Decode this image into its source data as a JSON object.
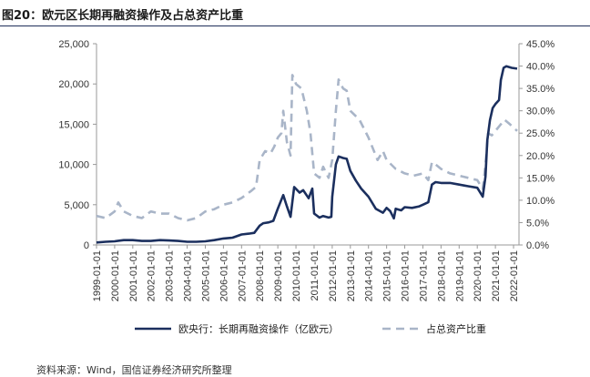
{
  "figure": {
    "title": "图20：欧元区长期再融资操作及占总资产比重",
    "source": "资料来源：Wind，国信证券经济研究所整理"
  },
  "chart_data": {
    "type": "line",
    "title": "",
    "xlabel": "",
    "x_ticks": [
      "1999-01-01",
      "2000-01-01",
      "2001-01-01",
      "2002-01-01",
      "2003-01-01",
      "2004-01-01",
      "2005-01-01",
      "2006-01-01",
      "2007-01-01",
      "2008-01-01",
      "2009-01-01",
      "2010-01-01",
      "2011-01-01",
      "2012-01-01",
      "2013-01-01",
      "2014-01-01",
      "2015-01-01",
      "2016-01-01",
      "2017-01-01",
      "2018-01-01",
      "2019-01-01",
      "2020-01-01",
      "2021-01-01",
      "2022-01-01"
    ],
    "y_left": {
      "label": "",
      "range": [
        0,
        25000
      ],
      "ticks": [
        "0",
        "5,000",
        "10,000",
        "15,000",
        "20,000",
        "25,000"
      ]
    },
    "y_right": {
      "label": "",
      "range": [
        0,
        45
      ],
      "ticks": [
        "0.0%",
        "5.0%",
        "10.0%",
        "15.0%",
        "20.0%",
        "25.0%",
        "30.0%",
        "35.0%",
        "40.0%",
        "45.0%"
      ]
    },
    "legend_position": "bottom",
    "series": [
      {
        "name": "欧央行：长期再融资操作（亿欧元）",
        "axis": "left",
        "color": "#1b2f5e",
        "style": "solid",
        "points": [
          [
            1999.0,
            300
          ],
          [
            1999.5,
            400
          ],
          [
            2000.0,
            450
          ],
          [
            2000.5,
            600
          ],
          [
            2001.0,
            600
          ],
          [
            2001.5,
            500
          ],
          [
            2002.0,
            500
          ],
          [
            2002.5,
            600
          ],
          [
            2003.0,
            550
          ],
          [
            2003.5,
            500
          ],
          [
            2004.0,
            400
          ],
          [
            2004.5,
            400
          ],
          [
            2005.0,
            450
          ],
          [
            2005.5,
            600
          ],
          [
            2006.0,
            800
          ],
          [
            2006.5,
            900
          ],
          [
            2007.0,
            1300
          ],
          [
            2007.4,
            1400
          ],
          [
            2007.7,
            1500
          ],
          [
            2008.0,
            2400
          ],
          [
            2008.2,
            2700
          ],
          [
            2008.5,
            2800
          ],
          [
            2008.75,
            3000
          ],
          [
            2009.0,
            4500
          ],
          [
            2009.3,
            6200
          ],
          [
            2009.5,
            4800
          ],
          [
            2009.7,
            3500
          ],
          [
            2009.9,
            7200
          ],
          [
            2010.2,
            6500
          ],
          [
            2010.4,
            6800
          ],
          [
            2010.7,
            5800
          ],
          [
            2010.9,
            7000
          ],
          [
            2011.0,
            3900
          ],
          [
            2011.3,
            3400
          ],
          [
            2011.5,
            3600
          ],
          [
            2011.8,
            3400
          ],
          [
            2011.95,
            3500
          ],
          [
            2012.0,
            6000
          ],
          [
            2012.2,
            10000
          ],
          [
            2012.35,
            11000
          ],
          [
            2012.6,
            10800
          ],
          [
            2012.8,
            10700
          ],
          [
            2013.0,
            9200
          ],
          [
            2013.3,
            8000
          ],
          [
            2013.6,
            7000
          ],
          [
            2014.0,
            6000
          ],
          [
            2014.4,
            4500
          ],
          [
            2014.8,
            4000
          ],
          [
            2015.0,
            4600
          ],
          [
            2015.2,
            4200
          ],
          [
            2015.4,
            3300
          ],
          [
            2015.5,
            4500
          ],
          [
            2015.8,
            4300
          ],
          [
            2016.0,
            4700
          ],
          [
            2016.4,
            4600
          ],
          [
            2016.8,
            4800
          ],
          [
            2017.0,
            5000
          ],
          [
            2017.3,
            5300
          ],
          [
            2017.5,
            7500
          ],
          [
            2017.7,
            7800
          ],
          [
            2018.0,
            7700
          ],
          [
            2018.5,
            7700
          ],
          [
            2019.0,
            7500
          ],
          [
            2019.5,
            7300
          ],
          [
            2020.0,
            7100
          ],
          [
            2020.3,
            6000
          ],
          [
            2020.45,
            8500
          ],
          [
            2020.55,
            13000
          ],
          [
            2020.7,
            15500
          ],
          [
            2020.85,
            17000
          ],
          [
            2021.0,
            17500
          ],
          [
            2021.2,
            18000
          ],
          [
            2021.3,
            20500
          ],
          [
            2021.45,
            22000
          ],
          [
            2021.6,
            22200
          ],
          [
            2021.9,
            22000
          ],
          [
            2022.2,
            21900
          ]
        ]
      },
      {
        "name": "占总资产比重",
        "axis": "right",
        "color": "#a9b5c8",
        "style": "dashed",
        "points": [
          [
            1999.0,
            6.5
          ],
          [
            1999.5,
            6.0
          ],
          [
            2000.0,
            7.5
          ],
          [
            2000.2,
            9.5
          ],
          [
            2000.5,
            7.5
          ],
          [
            2001.0,
            6.5
          ],
          [
            2001.5,
            6.0
          ],
          [
            2002.0,
            7.5
          ],
          [
            2002.5,
            7.0
          ],
          [
            2003.0,
            7.0
          ],
          [
            2003.5,
            6.0
          ],
          [
            2004.0,
            5.5
          ],
          [
            2004.5,
            6.0
          ],
          [
            2005.0,
            7.5
          ],
          [
            2005.5,
            8.0
          ],
          [
            2006.0,
            9.0
          ],
          [
            2006.5,
            9.5
          ],
          [
            2007.0,
            10.5
          ],
          [
            2007.5,
            12.0
          ],
          [
            2007.8,
            13.0
          ],
          [
            2008.0,
            19.0
          ],
          [
            2008.3,
            21.0
          ],
          [
            2008.6,
            20.5
          ],
          [
            2008.8,
            22.0
          ],
          [
            2009.0,
            24.0
          ],
          [
            2009.2,
            25.0
          ],
          [
            2009.3,
            30.0
          ],
          [
            2009.5,
            23.0
          ],
          [
            2009.7,
            20.0
          ],
          [
            2009.8,
            38.0
          ],
          [
            2010.0,
            36.0
          ],
          [
            2010.3,
            35.0
          ],
          [
            2010.6,
            30.0
          ],
          [
            2010.8,
            25.0
          ],
          [
            2011.0,
            16.0
          ],
          [
            2011.3,
            15.0
          ],
          [
            2011.5,
            17.5
          ],
          [
            2011.8,
            15.0
          ],
          [
            2012.0,
            19.0
          ],
          [
            2012.2,
            30.0
          ],
          [
            2012.35,
            37.0
          ],
          [
            2012.6,
            35.0
          ],
          [
            2012.8,
            34.5
          ],
          [
            2013.0,
            30.0
          ],
          [
            2013.5,
            28.0
          ],
          [
            2014.0,
            24.0
          ],
          [
            2014.5,
            19.0
          ],
          [
            2014.8,
            21.0
          ],
          [
            2015.0,
            19.0
          ],
          [
            2015.5,
            17.0
          ],
          [
            2016.0,
            16.0
          ],
          [
            2016.5,
            15.5
          ],
          [
            2017.0,
            16.0
          ],
          [
            2017.3,
            14.5
          ],
          [
            2017.5,
            18.5
          ],
          [
            2017.7,
            18.0
          ],
          [
            2018.0,
            17.0
          ],
          [
            2018.5,
            16.0
          ],
          [
            2019.0,
            15.5
          ],
          [
            2019.5,
            15.0
          ],
          [
            2020.0,
            14.5
          ],
          [
            2020.3,
            12.5
          ],
          [
            2020.45,
            18.0
          ],
          [
            2020.6,
            25.0
          ],
          [
            2020.8,
            24.5
          ],
          [
            2021.0,
            25.5
          ],
          [
            2021.3,
            27.0
          ],
          [
            2021.5,
            28.0
          ],
          [
            2021.8,
            27.0
          ],
          [
            2022.2,
            25.5
          ]
        ]
      }
    ]
  }
}
